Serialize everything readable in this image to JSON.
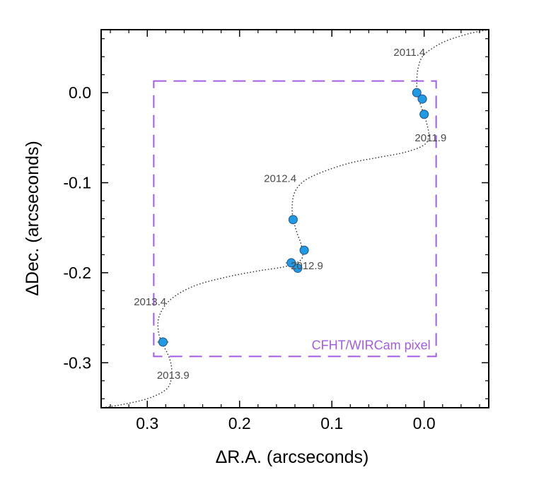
{
  "chart_data": {
    "type": "scatter",
    "title": "",
    "xlabel": "ΔR.A. (arcseconds)",
    "ylabel": "ΔDec. (arcseconds)",
    "xlim": [
      0.35,
      -0.07
    ],
    "ylim": [
      -0.35,
      0.07
    ],
    "x_axis_reversed": true,
    "grid": false,
    "x_ticks": [
      {
        "value": 0.3,
        "label": "0.3"
      },
      {
        "value": 0.2,
        "label": "0.2"
      },
      {
        "value": 0.1,
        "label": "0.1"
      },
      {
        "value": 0.0,
        "label": "0.0"
      }
    ],
    "y_ticks": [
      {
        "value": 0.0,
        "label": "0.0"
      },
      {
        "value": -0.1,
        "label": "-0.1"
      },
      {
        "value": -0.2,
        "label": "-0.2"
      },
      {
        "value": -0.3,
        "label": "-0.3"
      }
    ],
    "points": [
      {
        "x": 0.008,
        "y": 0.0,
        "xerr": 0.003,
        "yerr": 0.002
      },
      {
        "x": 0.002,
        "y": -0.007,
        "xerr": 0.005,
        "yerr": 0.003
      },
      {
        "x": 0.0,
        "y": -0.024,
        "xerr": 0.002,
        "yerr": 0.002
      },
      {
        "x": 0.142,
        "y": -0.141,
        "xerr": 0.002,
        "yerr": 0.002
      },
      {
        "x": 0.13,
        "y": -0.175,
        "xerr": 0.003,
        "yerr": 0.002
      },
      {
        "x": 0.144,
        "y": -0.189,
        "xerr": 0.006,
        "yerr": 0.003
      },
      {
        "x": 0.137,
        "y": -0.195,
        "xerr": 0.005,
        "yerr": 0.003
      },
      {
        "x": 0.283,
        "y": -0.277,
        "xerr": 0.006,
        "yerr": 0.002
      }
    ],
    "orbit_track": [
      [
        -0.07,
        0.07
      ],
      [
        -0.05,
        0.066
      ],
      [
        -0.025,
        0.058
      ],
      [
        -0.01,
        0.05
      ],
      [
        0.002,
        0.04
      ],
      [
        0.007,
        0.025
      ],
      [
        0.008,
        0.01
      ],
      [
        0.008,
        0.0
      ],
      [
        0.005,
        -0.01
      ],
      [
        0.001,
        -0.022
      ],
      [
        -0.003,
        -0.035
      ],
      [
        -0.005,
        -0.048
      ],
      [
        0.0,
        -0.058
      ],
      [
        0.02,
        -0.066
      ],
      [
        0.05,
        -0.072
      ],
      [
        0.08,
        -0.078
      ],
      [
        0.11,
        -0.088
      ],
      [
        0.13,
        -0.098
      ],
      [
        0.14,
        -0.11
      ],
      [
        0.143,
        -0.125
      ],
      [
        0.142,
        -0.14
      ],
      [
        0.138,
        -0.155
      ],
      [
        0.133,
        -0.17
      ],
      [
        0.133,
        -0.185
      ],
      [
        0.15,
        -0.193
      ],
      [
        0.18,
        -0.198
      ],
      [
        0.215,
        -0.205
      ],
      [
        0.25,
        -0.215
      ],
      [
        0.275,
        -0.23
      ],
      [
        0.287,
        -0.248
      ],
      [
        0.288,
        -0.265
      ],
      [
        0.284,
        -0.278
      ],
      [
        0.278,
        -0.29
      ],
      [
        0.274,
        -0.303
      ],
      [
        0.274,
        -0.318
      ],
      [
        0.28,
        -0.33
      ],
      [
        0.3,
        -0.34
      ],
      [
        0.33,
        -0.347
      ],
      [
        0.35,
        -0.35
      ]
    ],
    "epoch_labels": [
      {
        "text": "2011.4",
        "x": 0.016,
        "y": 0.041
      },
      {
        "text": "2011.9",
        "x": -0.007,
        "y": -0.054
      },
      {
        "text": "2012.4",
        "x": 0.156,
        "y": -0.099
      },
      {
        "text": "2012.9",
        "x": 0.127,
        "y": -0.196
      },
      {
        "text": "2013.4",
        "x": 0.297,
        "y": -0.236
      },
      {
        "text": "2013.9",
        "x": 0.272,
        "y": -0.318
      }
    ],
    "pixel_box": {
      "label": "CFHT/WIRCam pixel",
      "x": [
        0.293,
        -0.013
      ],
      "y": [
        0.013,
        -0.293
      ],
      "color": "#a25ce6"
    },
    "colors": {
      "point_fill": "#1e9ae6",
      "point_edge": "#2a4f78",
      "track": "#333333"
    }
  }
}
